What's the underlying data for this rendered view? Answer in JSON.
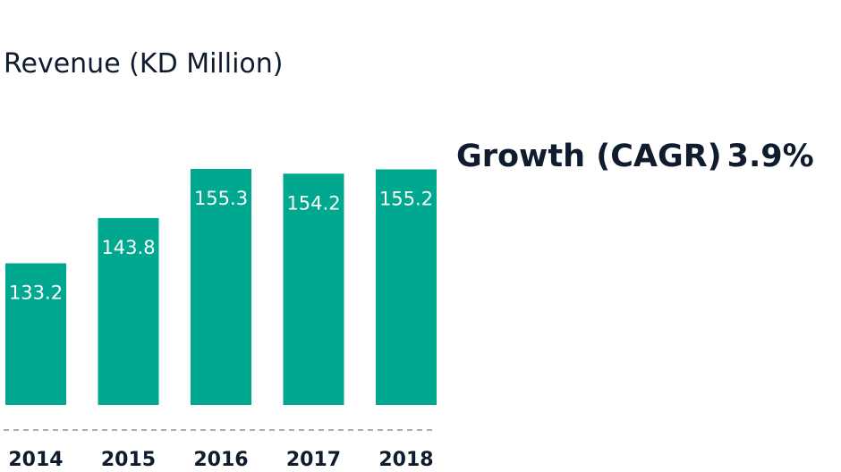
{
  "chart_data": {
    "type": "bar",
    "title": "Revenue (KD Million)",
    "categories": [
      "2014",
      "2015",
      "2016",
      "2017",
      "2018"
    ],
    "values": [
      133.2,
      143.8,
      155.3,
      154.2,
      155.2
    ],
    "data_labels": [
      "133.2",
      "143.8",
      "155.3",
      "154.2",
      "155.2"
    ],
    "ylim": [
      0,
      155.3
    ],
    "grid": false,
    "bar_color": "#00a88f",
    "label_color": "#ffffff",
    "tick_color": "#0f1c2e"
  },
  "growth": {
    "label": "Growth (CAGR)",
    "value": "3.9%"
  }
}
